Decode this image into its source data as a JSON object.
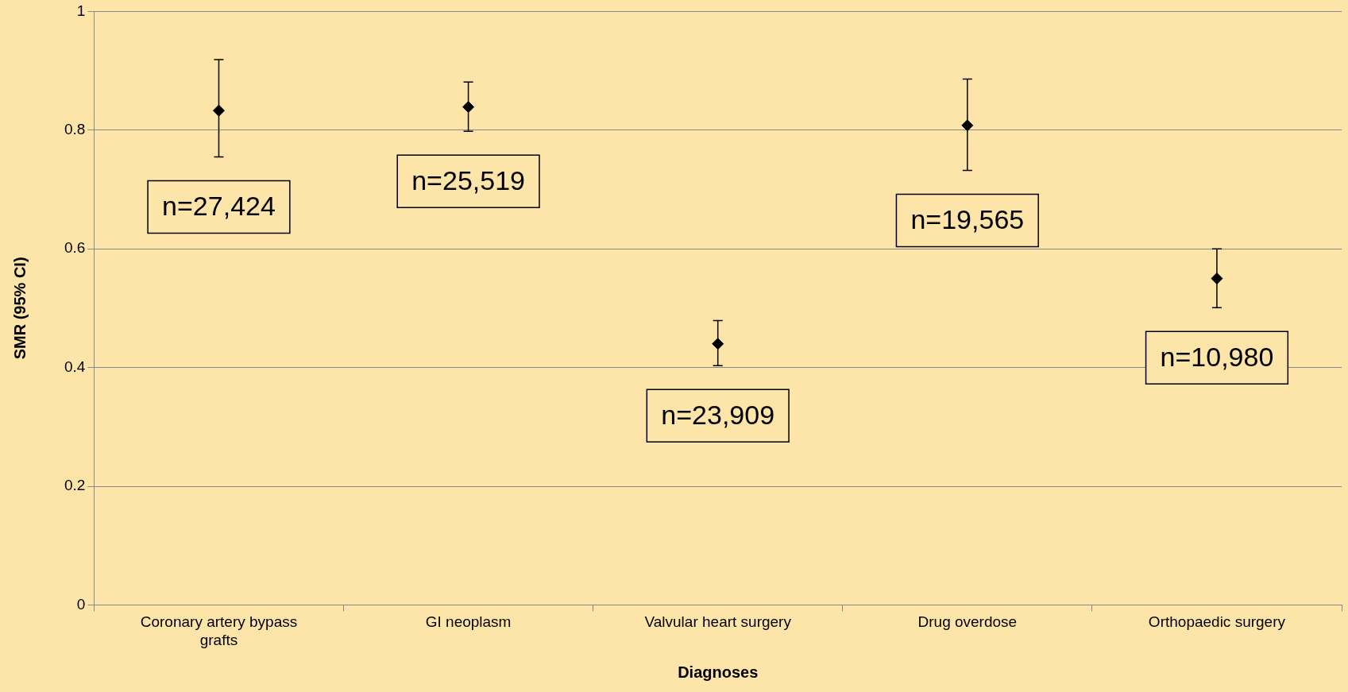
{
  "chart_data": {
    "type": "scatter",
    "xlabel": "Diagnoses",
    "ylabel": "SMR (95% CI)",
    "categories": [
      "Coronary artery bypass grafts",
      "GI neoplasm",
      "Valvular heart surgery",
      "Drug overdose",
      "Orthopaedic surgery"
    ],
    "values": [
      0.833,
      0.839,
      0.44,
      0.808,
      0.55
    ],
    "errors": [
      [
        0.755,
        0.919
      ],
      [
        0.798,
        0.881
      ],
      [
        0.403,
        0.479
      ],
      [
        0.732,
        0.886
      ],
      [
        0.501,
        0.6
      ]
    ],
    "color": "#000000",
    "marker": "diamond",
    "ylim": [
      0,
      1
    ],
    "yticks": [
      0,
      0.2,
      0.4,
      0.6,
      0.8,
      1
    ],
    "grid": "y",
    "legend": false,
    "annotations": [
      "n=27,424",
      "n=25,519",
      "n=23,909",
      "n=19,565",
      "n=10,980"
    ]
  }
}
